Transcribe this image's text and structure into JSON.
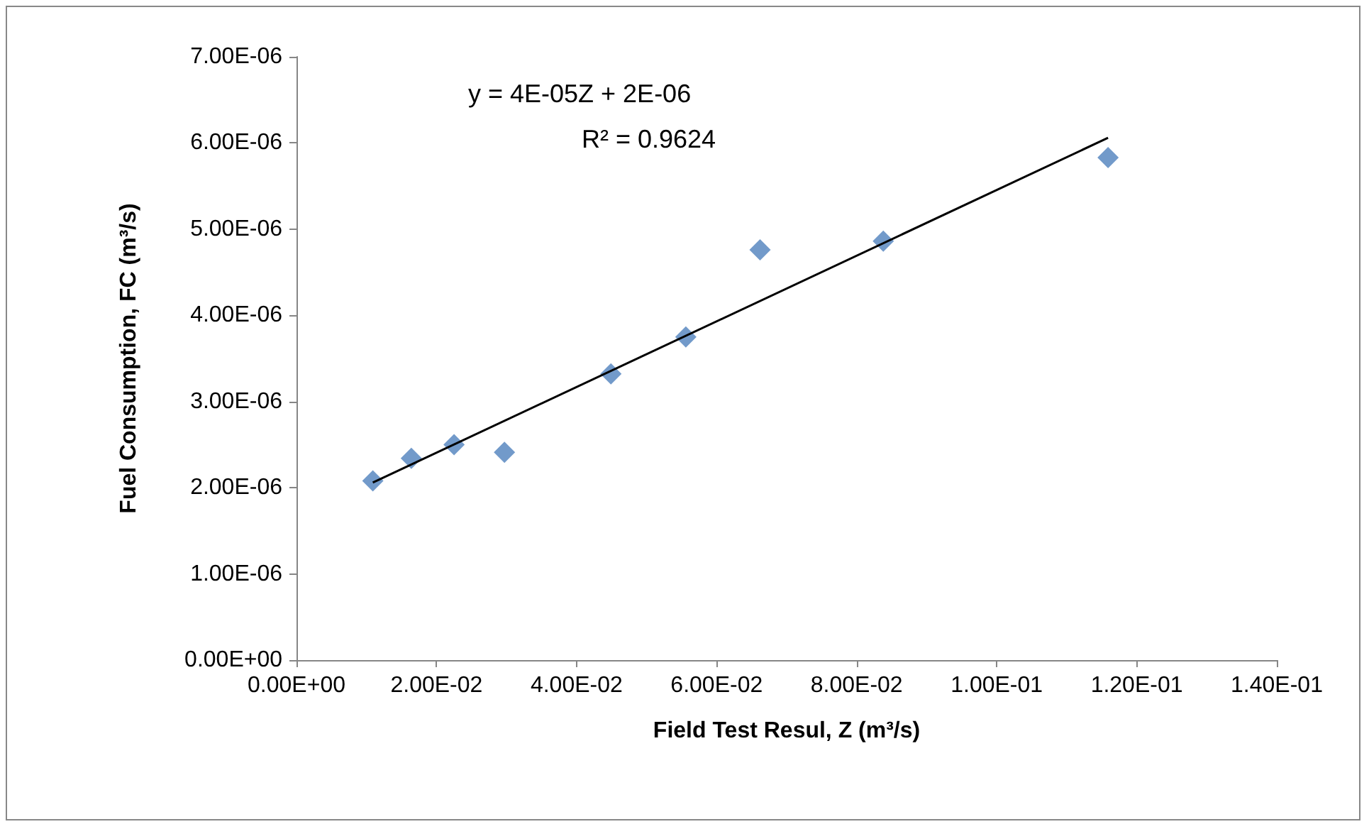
{
  "chart_data": {
    "type": "scatter",
    "xlabel": "Field Test Resul, Z (m³/s)",
    "ylabel": "Fuel Consumption, FC (m³/s)",
    "annotations": [
      "y = 4E-05Z + 2E-06",
      "R² = 0.9624"
    ],
    "series": [
      {
        "color": "#4f81bd",
        "marker": "diamond",
        "x": [
          0.0109,
          0.0164,
          0.0225,
          0.0297,
          0.0449,
          0.0556,
          0.0662,
          0.0838,
          0.1159
        ],
        "values": [
          2.08e-06,
          2.34e-06,
          2.5e-06,
          2.41e-06,
          3.32e-06,
          3.75e-06,
          4.76e-06,
          4.86e-06,
          5.83e-06
        ]
      },
      {
        "type": "line",
        "color": "#000000",
        "marker": "none",
        "x": [
          0.0109,
          0.1159
        ],
        "values": [
          2.06e-06,
          6.06e-06
        ]
      }
    ],
    "xlim": [
      0,
      0.14
    ],
    "ylim": [
      0,
      7e-06
    ],
    "xticks": [
      {
        "value": 0,
        "label": "0.00E+00"
      },
      {
        "value": 0.02,
        "label": "2.00E-02"
      },
      {
        "value": 0.04,
        "label": "4.00E-02"
      },
      {
        "value": 0.06,
        "label": "6.00E-02"
      },
      {
        "value": 0.08,
        "label": "8.00E-02"
      },
      {
        "value": 0.1,
        "label": "1.00E-01"
      },
      {
        "value": 0.12,
        "label": "1.20E-01"
      },
      {
        "value": 0.14,
        "label": "1.40E-01"
      }
    ],
    "yticks": [
      {
        "value": 0,
        "label": "0.00E+00"
      },
      {
        "value": 1e-06,
        "label": "1.00E-06"
      },
      {
        "value": 2e-06,
        "label": "2.00E-06"
      },
      {
        "value": 3e-06,
        "label": "3.00E-06"
      },
      {
        "value": 4e-06,
        "label": "4.00E-06"
      },
      {
        "value": 5e-06,
        "label": "5.00E-06"
      },
      {
        "value": 6e-06,
        "label": "6.00E-06"
      },
      {
        "value": 7e-06,
        "label": "7.00E-06"
      }
    ],
    "grid": false
  }
}
